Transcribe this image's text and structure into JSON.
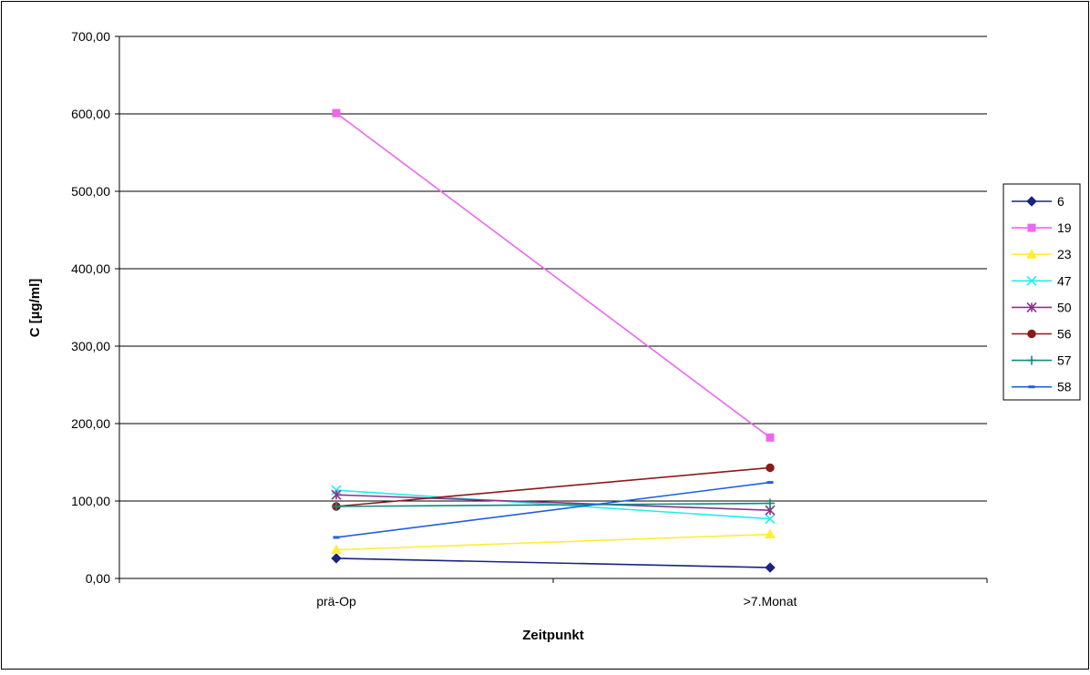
{
  "chart_data": {
    "type": "line",
    "title": "",
    "xlabel": "Zeitpunkt",
    "ylabel": "C [µg/ml]",
    "categories": [
      "prä-Op",
      ">7.Monat"
    ],
    "ylim": [
      0,
      700
    ],
    "yticks": [
      "0,00",
      "100,00",
      "200,00",
      "300,00",
      "400,00",
      "500,00",
      "600,00",
      "700,00"
    ],
    "grid": true,
    "legend_position": "right",
    "series": [
      {
        "name": "6",
        "values": [
          26,
          14
        ],
        "color": "#1a237e",
        "marker": "diamond"
      },
      {
        "name": "19",
        "values": [
          601,
          182
        ],
        "color": "#ee66ee",
        "marker": "square"
      },
      {
        "name": "23",
        "values": [
          37,
          57
        ],
        "color": "#ffee33",
        "marker": "triangle"
      },
      {
        "name": "47",
        "values": [
          114,
          77
        ],
        "color": "#22eeee",
        "marker": "x"
      },
      {
        "name": "50",
        "values": [
          108,
          88
        ],
        "color": "#883388",
        "marker": "star"
      },
      {
        "name": "56",
        "values": [
          93,
          143
        ],
        "color": "#8b1a1a",
        "marker": "circle"
      },
      {
        "name": "57",
        "values": [
          93,
          97
        ],
        "color": "#128a7a",
        "marker": "plus"
      },
      {
        "name": "58",
        "values": [
          53,
          124
        ],
        "color": "#1f5fdd",
        "marker": "dash"
      }
    ]
  }
}
